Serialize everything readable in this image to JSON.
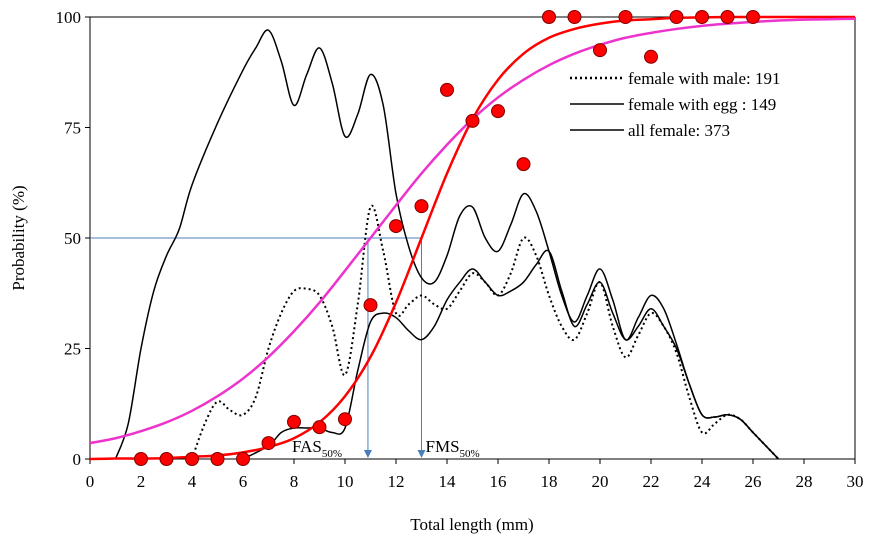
{
  "chart_data": {
    "type": "line",
    "xlabel": "Total length (mm)",
    "ylabel": "Probability (%)",
    "xlim": [
      0,
      30
    ],
    "xticks": [
      0,
      2,
      4,
      6,
      8,
      10,
      12,
      14,
      16,
      18,
      20,
      22,
      24,
      26,
      28,
      30
    ],
    "ylim": [
      0,
      100
    ],
    "yticks": [
      0,
      25,
      50,
      75,
      100
    ],
    "series": [
      {
        "name": "female with male: 191",
        "color": "#000000",
        "dashed": true,
        "x": [
          4,
          4.5,
          5,
          5.5,
          6,
          6.5,
          7,
          7.5,
          8,
          8.5,
          9,
          9.5,
          10,
          10.5,
          11,
          11.5,
          12,
          12.5,
          13,
          13.5,
          14,
          14.5,
          15,
          15.5,
          16,
          16.5,
          17,
          17.5,
          18,
          18.5,
          19,
          19.5,
          20,
          20.5,
          21,
          21.5,
          22,
          22.5,
          23,
          23.5,
          24,
          24.5,
          25,
          25.5,
          26,
          26.5,
          27
        ],
        "values": [
          0,
          8,
          13,
          11,
          10,
          14,
          25,
          33,
          38,
          38.5,
          37,
          30,
          19,
          35,
          57,
          47,
          33,
          35,
          37,
          35,
          34,
          38,
          42,
          40,
          37,
          42,
          50,
          46,
          37,
          30,
          27,
          33,
          40,
          30,
          23,
          28,
          33,
          30,
          24,
          14,
          6,
          8,
          10,
          9,
          6,
          3,
          0
        ]
      },
      {
        "name": "female with egg : 149",
        "color": "#000000",
        "dashed": false,
        "x": [
          6,
          7,
          7.5,
          8,
          8.5,
          9,
          9.5,
          10,
          10.5,
          11,
          11.5,
          12,
          12.5,
          13,
          13.5,
          14,
          14.5,
          15,
          15.5,
          16,
          16.5,
          17,
          17.5,
          18,
          18.5,
          19,
          19.5,
          20,
          20.5,
          21,
          21.5,
          22,
          22.5,
          23,
          23.5,
          24,
          24.5,
          25,
          25.5,
          26,
          26.5,
          27
        ],
        "values": [
          0,
          3,
          6,
          7,
          7,
          7,
          6,
          7,
          20,
          31,
          33,
          32,
          29,
          27,
          30,
          36,
          40,
          43,
          40,
          37,
          38,
          40,
          44,
          47,
          38,
          30,
          35,
          40,
          33,
          27,
          30,
          34,
          30,
          25,
          17,
          10,
          9.5,
          10,
          9,
          6,
          3,
          0
        ]
      },
      {
        "name": "all female: 373",
        "color": "#000000",
        "dashed": false,
        "x": [
          1,
          1.5,
          2,
          2.5,
          3,
          3.5,
          4,
          5,
          6,
          6.5,
          7,
          7.5,
          8,
          8.5,
          9,
          9.5,
          10,
          10.5,
          11,
          11.5,
          12,
          12.5,
          13,
          13.5,
          14,
          14.5,
          15,
          15.5,
          16,
          16.5,
          17,
          17.5,
          18,
          18.5,
          19,
          19.5,
          20,
          20.5,
          21,
          21.5,
          22,
          22.5,
          23,
          23.5,
          24,
          24.5,
          25,
          25.5,
          26,
          26.5,
          27
        ],
        "values": [
          0,
          8,
          25,
          38,
          46,
          52,
          62,
          76,
          88,
          93,
          97,
          90,
          80,
          87,
          93,
          85,
          73,
          78,
          87,
          80,
          60,
          48,
          41,
          40,
          46,
          55,
          57,
          50,
          47,
          53,
          60,
          56,
          47,
          37,
          31,
          37,
          43,
          36,
          27,
          32,
          37,
          34,
          26,
          17,
          10,
          9.5,
          10,
          9,
          6,
          3,
          0
        ]
      }
    ],
    "fits": [
      {
        "color": "#ff0000",
        "x": [
          0,
          1,
          2,
          3,
          4,
          5,
          6,
          7,
          8,
          9,
          10,
          11,
          12,
          13,
          14,
          15,
          16,
          17,
          18,
          19,
          20,
          21,
          22,
          23,
          24,
          25,
          26,
          27,
          28,
          29,
          30
        ],
        "values": [
          0,
          0.1,
          0.1,
          0.2,
          0.5,
          0.8,
          1.5,
          2.7,
          4.7,
          8.3,
          14.2,
          23.1,
          35.4,
          50,
          64.6,
          76.9,
          85.8,
          91.7,
          95.3,
          97.3,
          98.5,
          99.2,
          99.5,
          99.8,
          99.9,
          100,
          100,
          100,
          100,
          100,
          100
        ]
      },
      {
        "color": "#ee33cc",
        "x": [
          0,
          1,
          2,
          3,
          4,
          5,
          6,
          7,
          8,
          9,
          10,
          11,
          12,
          13,
          14,
          15,
          16,
          17,
          18,
          19,
          20,
          21,
          22,
          23,
          24,
          25,
          26,
          27,
          28,
          29,
          30
        ],
        "values": [
          3.6,
          4.7,
          6.3,
          8.3,
          10.9,
          14.2,
          18.2,
          23.1,
          28.9,
          35.4,
          42.6,
          50,
          57.4,
          64.6,
          71.1,
          76.9,
          81.8,
          85.8,
          89.1,
          91.7,
          93.7,
          95.3,
          96.4,
          97.3,
          98,
          98.5,
          98.9,
          99.2,
          99.4,
          99.5,
          99.6
        ]
      }
    ],
    "points": {
      "color": "#ff0000",
      "x": [
        2,
        3,
        4,
        5,
        6,
        7,
        8,
        9,
        10,
        11,
        12,
        13,
        14,
        15,
        16,
        17,
        18,
        19,
        20,
        21,
        22,
        23,
        24,
        25,
        26
      ],
      "values": [
        0,
        0,
        0,
        0,
        0,
        3.6,
        8.4,
        7.2,
        9,
        34.8,
        52.7,
        57.2,
        83.5,
        76.5,
        78.7,
        66.7,
        100,
        100,
        92.5,
        100,
        91,
        100,
        100,
        100,
        100
      ]
    },
    "reference": {
      "color": "#4a7ebb",
      "y": 50,
      "markers": [
        {
          "x": 10.9,
          "text": "FAS",
          "sub": "50%"
        },
        {
          "x": 13,
          "text": "FMS",
          "sub": "50%"
        }
      ]
    }
  }
}
